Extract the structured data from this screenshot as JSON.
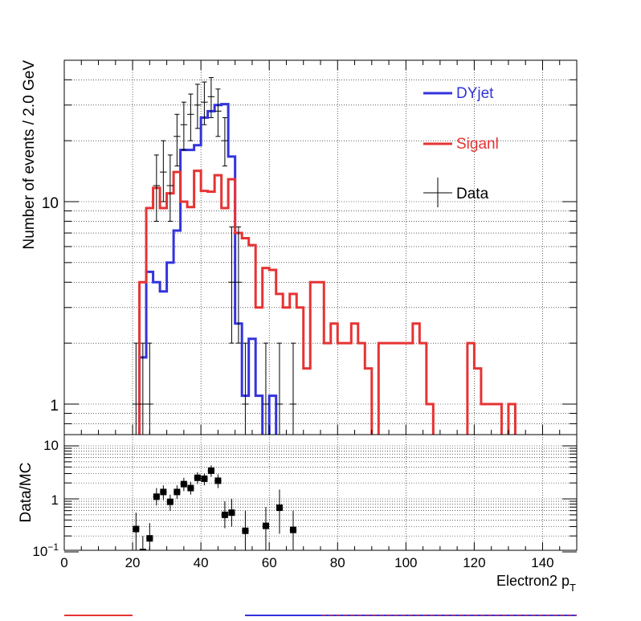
{
  "chart_data": {
    "type": "histogram",
    "main": {
      "ylabel": "Number of events / 2.0 GeV",
      "yscale": "log",
      "ylim": [
        0.75,
        42
      ],
      "xlim": [
        0,
        150
      ],
      "y_tick_labels": [
        "1",
        "10"
      ],
      "grid": true,
      "legend_position": "top-right",
      "bin_width": 2,
      "series": [
        {
          "name": "DYjet",
          "color": "#3333dd",
          "style": "step",
          "bins": [
            [
              20,
              0.6
            ],
            [
              22,
              1.7
            ],
            [
              24,
              4.5
            ],
            [
              26,
              4.0
            ],
            [
              28,
              3.6
            ],
            [
              30,
              5.0
            ],
            [
              32,
              7.2
            ],
            [
              34,
              18.0
            ],
            [
              36,
              18.0
            ],
            [
              38,
              19.0
            ],
            [
              40,
              26.0
            ],
            [
              42,
              28.0
            ],
            [
              44,
              30.0
            ],
            [
              46,
              30.3
            ],
            [
              48,
              16.7
            ],
            [
              50,
              2.5
            ],
            [
              52,
              1.1
            ],
            [
              54,
              2.1
            ],
            [
              56,
              1.1
            ],
            [
              58,
              0.5
            ],
            [
              60,
              1.1
            ]
          ]
        },
        {
          "name": "Siganl",
          "color": "#e63333",
          "style": "step",
          "bins": [
            [
              20,
              0.4
            ],
            [
              22,
              4.0
            ],
            [
              24,
              9.3
            ],
            [
              26,
              11.7
            ],
            [
              28,
              9.3
            ],
            [
              30,
              11.0
            ],
            [
              32,
              14.0
            ],
            [
              34,
              10.0
            ],
            [
              36,
              9.4
            ],
            [
              38,
              14.2
            ],
            [
              40,
              11.3
            ],
            [
              42,
              11.2
            ],
            [
              44,
              13.5
            ],
            [
              46,
              9.3
            ],
            [
              48,
              12.9
            ],
            [
              50,
              7.0
            ],
            [
              52,
              6.6
            ],
            [
              54,
              6.1
            ],
            [
              56,
              3.0
            ],
            [
              58,
              4.7
            ],
            [
              60,
              4.6
            ],
            [
              62,
              3.5
            ],
            [
              64,
              3.0
            ],
            [
              66,
              3.5
            ],
            [
              68,
              3.0
            ],
            [
              70,
              1.5
            ],
            [
              72,
              4.0
            ],
            [
              74,
              4.0
            ],
            [
              76,
              2.0
            ],
            [
              78,
              2.5
            ],
            [
              80,
              2.0
            ],
            [
              82,
              2.0
            ],
            [
              84,
              2.5
            ],
            [
              86,
              2.0
            ],
            [
              88,
              1.5
            ],
            [
              92,
              2.0
            ],
            [
              94,
              2.0
            ],
            [
              96,
              2.0
            ],
            [
              98,
              2.0
            ],
            [
              100,
              2.0
            ],
            [
              102,
              2.5
            ],
            [
              104,
              2.0
            ],
            [
              106,
              1.0
            ],
            [
              108,
              0.5
            ],
            [
              118,
              2.0
            ],
            [
              120,
              1.5
            ],
            [
              122,
              1.0
            ],
            [
              124,
              1.0
            ],
            [
              126,
              1.0
            ],
            [
              128,
              0.5
            ],
            [
              130,
              1.0
            ],
            [
              132,
              0.5
            ]
          ]
        }
      ],
      "data": {
        "name": "Data",
        "color": "#000000",
        "points": [
          {
            "x": 21,
            "y": 1.0,
            "lo": 0.25,
            "hi": 2.0
          },
          {
            "x": 23,
            "y": 1.0,
            "lo": 0.25,
            "hi": 2.0
          },
          {
            "x": 25,
            "y": 1.0,
            "lo": 0.25,
            "hi": 2.0
          },
          {
            "x": 27,
            "y": 12.0,
            "lo": 8.0,
            "hi": 17.0
          },
          {
            "x": 29,
            "y": 14.0,
            "lo": 10.0,
            "hi": 20.0
          },
          {
            "x": 31,
            "y": 12.0,
            "lo": 8.0,
            "hi": 17.0
          },
          {
            "x": 33,
            "y": 21.0,
            "lo": 15.0,
            "hi": 27.0
          },
          {
            "x": 35,
            "y": 24.0,
            "lo": 18.0,
            "hi": 31.0
          },
          {
            "x": 37,
            "y": 27.0,
            "lo": 20.0,
            "hi": 34.0
          },
          {
            "x": 39,
            "y": 30.0,
            "lo": 23.0,
            "hi": 38.0
          },
          {
            "x": 41,
            "y": 31.0,
            "lo": 24.0,
            "hi": 39.0
          },
          {
            "x": 43,
            "y": 33.0,
            "lo": 26.0,
            "hi": 41.0
          },
          {
            "x": 45,
            "y": 28.0,
            "lo": 21.0,
            "hi": 36.0
          },
          {
            "x": 47,
            "y": 20.0,
            "lo": 15.0,
            "hi": 26.0
          },
          {
            "x": 49,
            "y": 4.0,
            "lo": 2.0,
            "hi": 7.5
          },
          {
            "x": 51,
            "y": 4.0,
            "lo": 2.0,
            "hi": 7.5
          },
          {
            "x": 53,
            "y": 1.0,
            "lo": 0.25,
            "hi": 2.0
          },
          {
            "x": 59,
            "y": 1.0,
            "lo": 0.25,
            "hi": 2.0
          },
          {
            "x": 63,
            "y": 1.0,
            "lo": 0.25,
            "hi": 2.0
          },
          {
            "x": 67,
            "y": 1.0,
            "lo": 0.25,
            "hi": 2.0
          }
        ]
      }
    },
    "ratio": {
      "ylabel": "Data/MC",
      "yscale": "log",
      "ylim": [
        0.1,
        13
      ],
      "y_tick_labels": [
        "10",
        "1",
        "10^-1"
      ],
      "xlabel": "Electron2 p_T",
      "xlim": [
        0,
        150
      ],
      "x_tick_labels": [
        "0",
        "20",
        "40",
        "60",
        "80",
        "100",
        "120",
        "140"
      ],
      "points": [
        {
          "x": 21,
          "y": 0.27,
          "lo": 0.09,
          "hi": 0.55
        },
        {
          "x": 23,
          "y": 0.1,
          "lo": 0.04,
          "hi": 0.2
        },
        {
          "x": 25,
          "y": 0.18,
          "lo": 0.07,
          "hi": 0.35
        },
        {
          "x": 27,
          "y": 1.1,
          "lo": 0.75,
          "hi": 1.6
        },
        {
          "x": 29,
          "y": 1.35,
          "lo": 0.95,
          "hi": 1.8
        },
        {
          "x": 31,
          "y": 0.88,
          "lo": 0.6,
          "hi": 1.2
        },
        {
          "x": 33,
          "y": 1.35,
          "lo": 1.0,
          "hi": 1.8
        },
        {
          "x": 35,
          "y": 1.9,
          "lo": 1.4,
          "hi": 2.5
        },
        {
          "x": 37,
          "y": 1.6,
          "lo": 1.2,
          "hi": 2.1
        },
        {
          "x": 39,
          "y": 2.5,
          "lo": 1.9,
          "hi": 3.2
        },
        {
          "x": 41,
          "y": 2.4,
          "lo": 1.8,
          "hi": 3.0
        },
        {
          "x": 43,
          "y": 3.4,
          "lo": 2.6,
          "hi": 4.3
        },
        {
          "x": 45,
          "y": 2.2,
          "lo": 1.6,
          "hi": 2.9
        },
        {
          "x": 47,
          "y": 0.5,
          "lo": 0.28,
          "hi": 0.9
        },
        {
          "x": 49,
          "y": 0.55,
          "lo": 0.3,
          "hi": 1.0
        },
        {
          "x": 53,
          "y": 0.25,
          "lo": 0.08,
          "hi": 0.6
        },
        {
          "x": 59,
          "y": 0.31,
          "lo": 0.1,
          "hi": 0.7
        },
        {
          "x": 63,
          "y": 0.68,
          "lo": 0.22,
          "hi": 1.5
        },
        {
          "x": 67,
          "y": 0.26,
          "lo": 0.08,
          "hi": 0.6
        }
      ]
    }
  }
}
